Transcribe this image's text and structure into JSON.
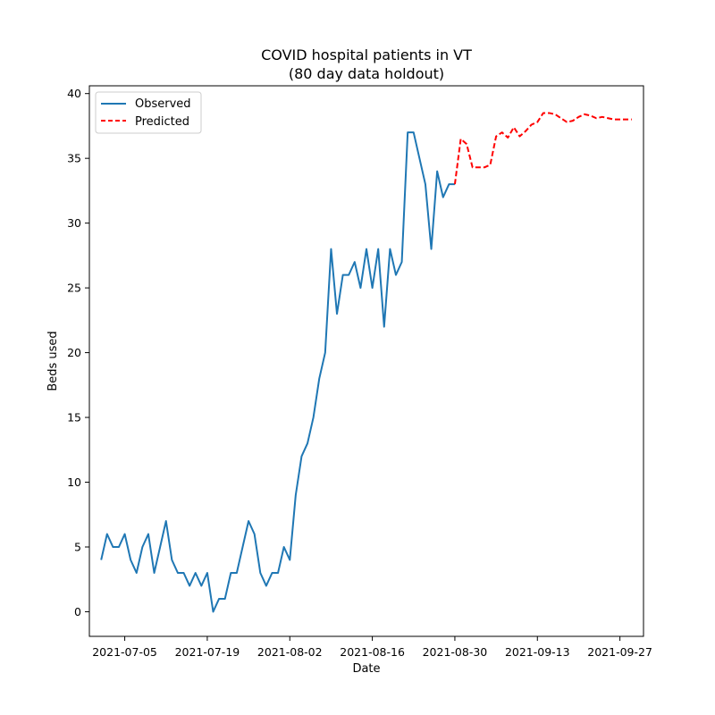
{
  "chart_data": {
    "type": "line",
    "title": "COVID hospital patients in VT",
    "subtitle": "(80 day data holdout)",
    "xlabel": "Date",
    "ylabel": "Beds used",
    "xlim": [
      "2021-06-29",
      "2021-10-01"
    ],
    "ylim": [
      -1.9,
      40.6
    ],
    "x_ticks": [
      "2021-07-05",
      "2021-07-19",
      "2021-08-02",
      "2021-08-16",
      "2021-08-30",
      "2021-09-13",
      "2021-09-27"
    ],
    "y_ticks": [
      0,
      5,
      10,
      15,
      20,
      25,
      30,
      35,
      40
    ],
    "grid": false,
    "legend_position": "top-left",
    "series": [
      {
        "name": "Observed",
        "color": "#1f77b4",
        "style": "solid",
        "x": [
          "2021-07-01",
          "2021-07-02",
          "2021-07-03",
          "2021-07-04",
          "2021-07-05",
          "2021-07-06",
          "2021-07-07",
          "2021-07-08",
          "2021-07-09",
          "2021-07-10",
          "2021-07-11",
          "2021-07-12",
          "2021-07-13",
          "2021-07-14",
          "2021-07-15",
          "2021-07-16",
          "2021-07-17",
          "2021-07-18",
          "2021-07-19",
          "2021-07-20",
          "2021-07-21",
          "2021-07-22",
          "2021-07-23",
          "2021-07-24",
          "2021-07-25",
          "2021-07-26",
          "2021-07-27",
          "2021-07-28",
          "2021-07-29",
          "2021-07-30",
          "2021-07-31",
          "2021-08-01",
          "2021-08-02",
          "2021-08-03",
          "2021-08-04",
          "2021-08-05",
          "2021-08-06",
          "2021-08-07",
          "2021-08-08",
          "2021-08-09",
          "2021-08-10",
          "2021-08-11",
          "2021-08-12",
          "2021-08-13",
          "2021-08-14",
          "2021-08-15",
          "2021-08-16",
          "2021-08-17",
          "2021-08-18",
          "2021-08-19",
          "2021-08-20",
          "2021-08-21",
          "2021-08-22",
          "2021-08-23",
          "2021-08-24",
          "2021-08-25",
          "2021-08-26",
          "2021-08-27",
          "2021-08-28",
          "2021-08-29",
          "2021-08-30"
        ],
        "values": [
          4,
          6,
          5,
          5,
          6,
          4,
          3,
          5,
          6,
          3,
          5,
          7,
          4,
          3,
          3,
          2,
          3,
          2,
          3,
          0,
          1,
          1,
          3,
          3,
          5,
          7,
          6,
          3,
          2,
          3,
          3,
          5,
          4,
          9,
          12,
          13,
          15,
          18,
          20,
          28,
          23,
          26,
          26,
          27,
          25,
          28,
          25,
          28,
          22,
          28,
          26,
          27,
          37,
          37,
          35,
          33,
          28,
          34,
          32,
          33,
          33
        ]
      },
      {
        "name": "Predicted",
        "color": "#ff0000",
        "style": "dashed",
        "x": [
          "2021-08-30",
          "2021-08-31",
          "2021-09-01",
          "2021-09-02",
          "2021-09-03",
          "2021-09-04",
          "2021-09-05",
          "2021-09-06",
          "2021-09-07",
          "2021-09-08",
          "2021-09-09",
          "2021-09-10",
          "2021-09-11",
          "2021-09-12",
          "2021-09-13",
          "2021-09-14",
          "2021-09-15",
          "2021-09-16",
          "2021-09-17",
          "2021-09-18",
          "2021-09-19",
          "2021-09-20",
          "2021-09-21",
          "2021-09-22",
          "2021-09-23",
          "2021-09-24",
          "2021-09-25",
          "2021-09-26",
          "2021-09-27",
          "2021-09-28",
          "2021-09-29"
        ],
        "values": [
          33,
          36.5,
          36.1,
          34.3,
          34.3,
          34.3,
          34.5,
          36.7,
          37,
          36.6,
          37.4,
          36.7,
          37.1,
          37.6,
          37.8,
          38.5,
          38.5,
          38.4,
          38.1,
          37.8,
          37.9,
          38.2,
          38.4,
          38.3,
          38.1,
          38.2,
          38.1,
          38,
          38,
          38,
          38
        ]
      }
    ]
  }
}
